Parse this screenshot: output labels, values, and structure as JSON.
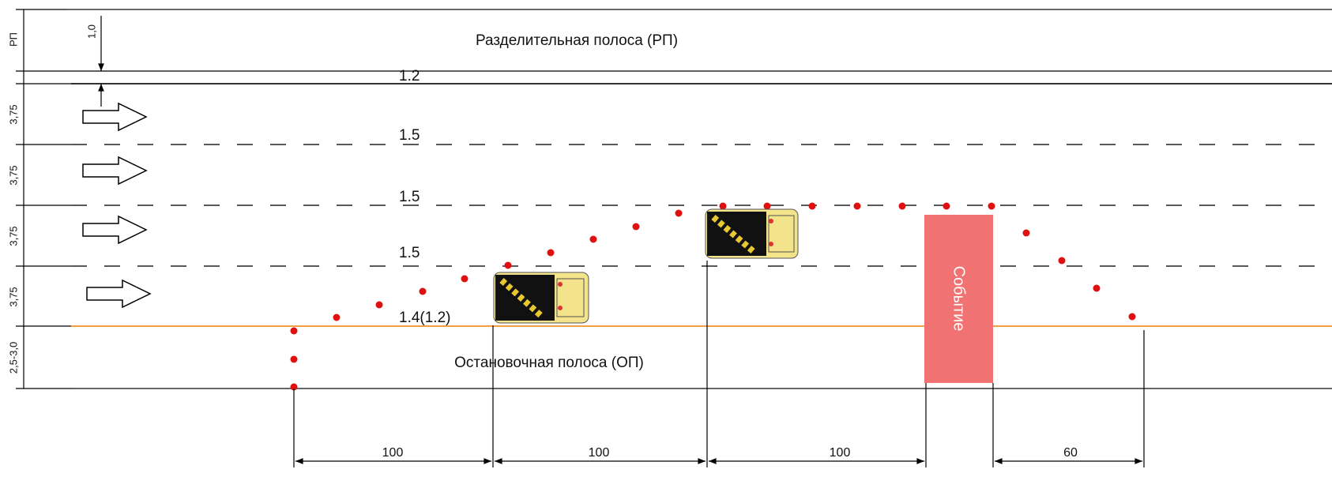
{
  "median_strip": {
    "label": "Разделительная полоса (РП)",
    "dimension": "РП",
    "offset": "1,0",
    "marking": "1.2"
  },
  "lanes": [
    {
      "width": "3,75",
      "marking": "1.5"
    },
    {
      "width": "3,75",
      "marking": "1.5"
    },
    {
      "width": "3,75",
      "marking": "1.5"
    },
    {
      "width": "3,75",
      "marking": "1.4(1.2)"
    }
  ],
  "shoulder": {
    "label": "Остановочная полоса (ОП)",
    "width": "2,5-3,0"
  },
  "event": {
    "label": "Событие"
  },
  "distances": [
    "100",
    "100",
    "100",
    "60"
  ]
}
